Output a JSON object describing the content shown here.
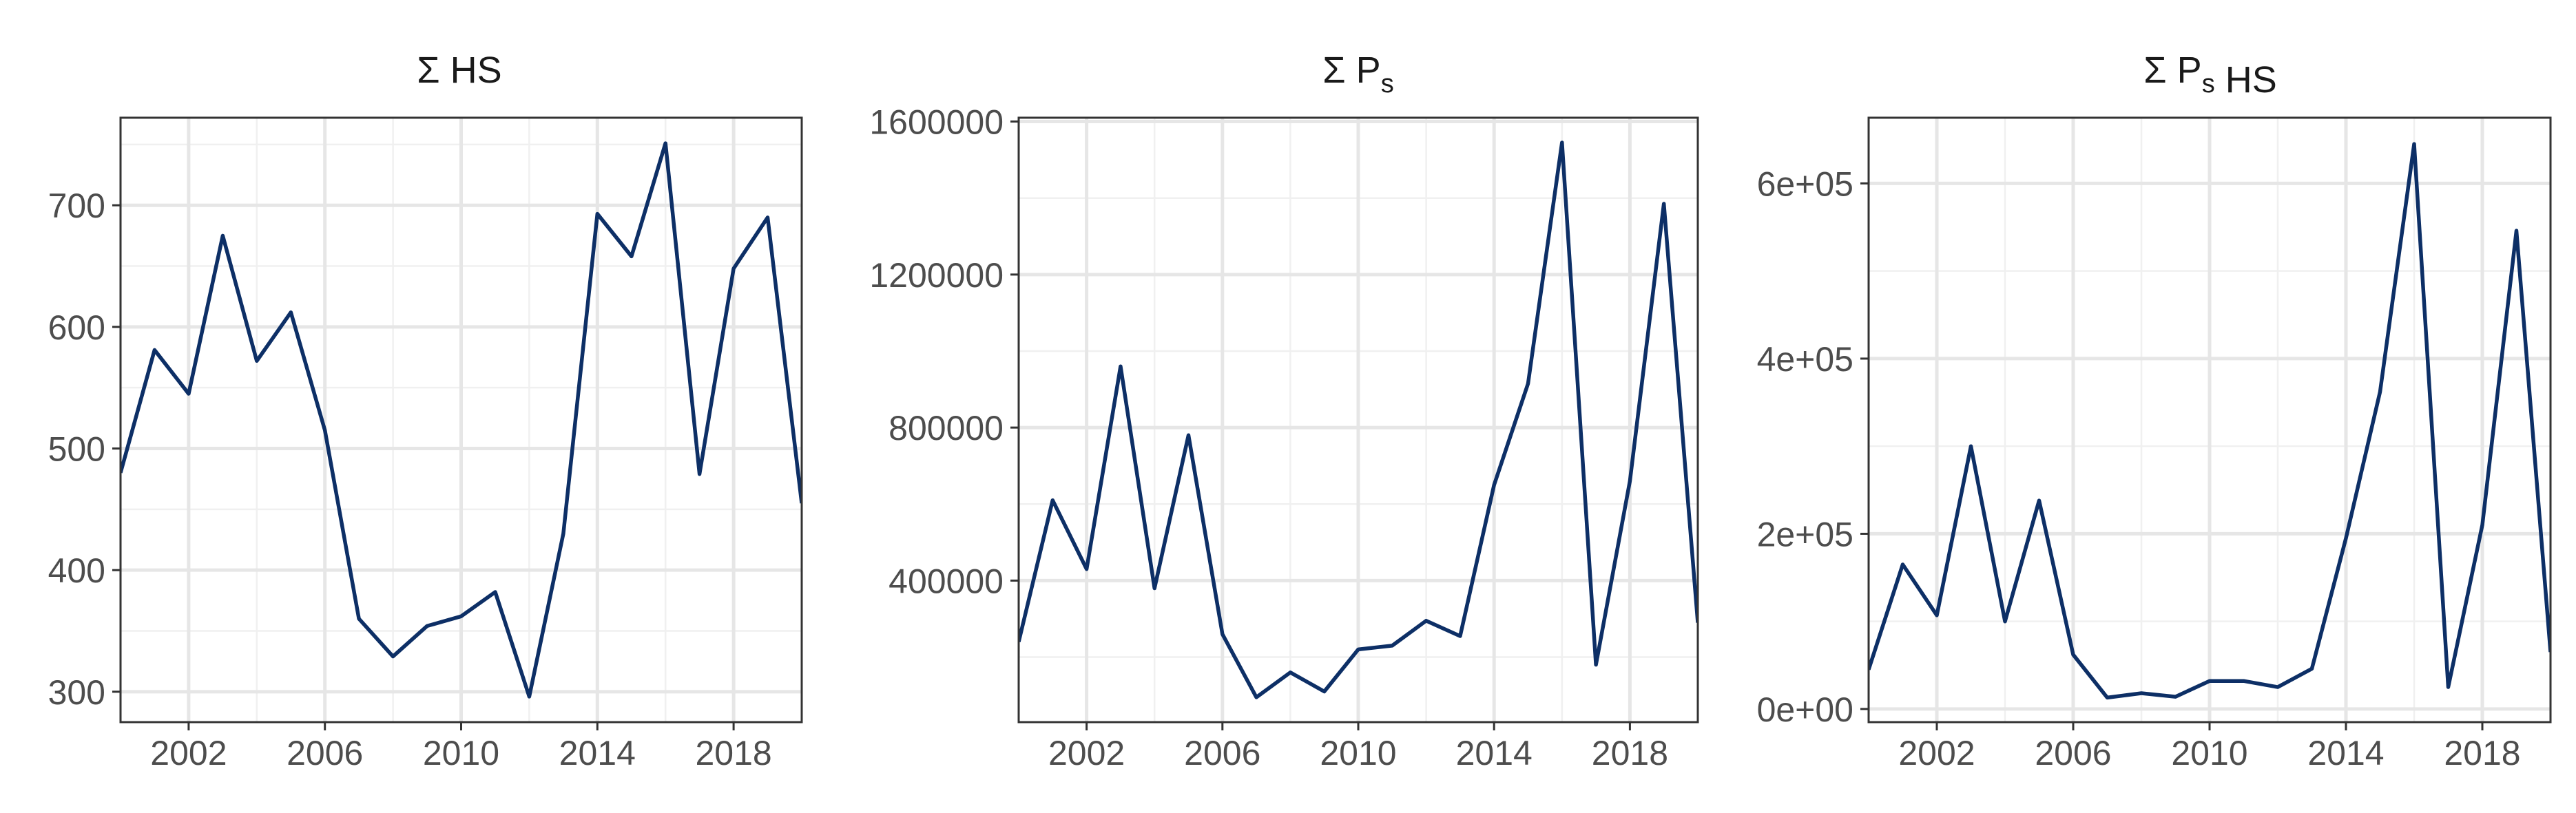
{
  "chart_data": [
    {
      "type": "line",
      "title": "Σ HS",
      "title_parts": [
        {
          "text": "Σ HS",
          "sub": ""
        }
      ],
      "x": [
        2000,
        2001,
        2002,
        2003,
        2004,
        2005,
        2006,
        2007,
        2008,
        2009,
        2010,
        2011,
        2012,
        2013,
        2014,
        2015,
        2016,
        2017,
        2018,
        2019,
        2020
      ],
      "series": [
        {
          "values": [
            480,
            581,
            545,
            675,
            572,
            612,
            515,
            360,
            329,
            354,
            362,
            382,
            296,
            430,
            693,
            658,
            751,
            479,
            648,
            690,
            455
          ]
        }
      ],
      "xlim": [
        2000,
        2020
      ],
      "ylim": [
        275,
        772
      ],
      "x_ticks": [
        2002,
        2006,
        2010,
        2014,
        2018
      ],
      "x_tick_labels": [
        "2002",
        "2006",
        "2010",
        "2014",
        "2018"
      ],
      "y_ticks": [
        300,
        400,
        500,
        600,
        700
      ],
      "y_tick_labels": [
        "300",
        "400",
        "500",
        "600",
        "700"
      ],
      "xlabel": "",
      "ylabel": "",
      "grid": true,
      "line_color": "#0d2f66"
    },
    {
      "type": "line",
      "title": "Σ Ps",
      "title_parts": [
        {
          "text": "Σ P",
          "sub": "s"
        }
      ],
      "x": [
        2000,
        2001,
        2002,
        2003,
        2004,
        2005,
        2006,
        2007,
        2008,
        2009,
        2010,
        2011,
        2012,
        2013,
        2014,
        2015,
        2016,
        2017,
        2018,
        2019,
        2020
      ],
      "series": [
        {
          "values": [
            240000,
            610000,
            430000,
            960000,
            380000,
            780000,
            260000,
            95000,
            160000,
            110000,
            220000,
            230000,
            295000,
            255000,
            650000,
            915000,
            1545000,
            180000,
            660000,
            1385000,
            290000
          ]
        }
      ],
      "xlim": [
        2000,
        2020
      ],
      "ylim": [
        30000,
        1610000
      ],
      "x_ticks": [
        2002,
        2006,
        2010,
        2014,
        2018
      ],
      "x_tick_labels": [
        "2002",
        "2006",
        "2010",
        "2014",
        "2018"
      ],
      "y_ticks": [
        400000,
        800000,
        1200000,
        1600000
      ],
      "y_tick_labels": [
        "400000",
        "800000",
        "1200000",
        "1600000"
      ],
      "xlabel": "",
      "ylabel": "",
      "grid": true,
      "line_color": "#0d2f66"
    },
    {
      "type": "line",
      "title": "Σ Ps HS",
      "title_parts": [
        {
          "text": "Σ P",
          "sub": "s"
        },
        {
          "text": " HS",
          "sub": ""
        }
      ],
      "x": [
        2000,
        2001,
        2002,
        2003,
        2004,
        2005,
        2006,
        2007,
        2008,
        2009,
        2010,
        2011,
        2012,
        2013,
        2014,
        2015,
        2016,
        2017,
        2018,
        2019,
        2020
      ],
      "series": [
        {
          "values": [
            45000,
            165000,
            107000,
            300000,
            100000,
            238000,
            62000,
            13000,
            18000,
            14000,
            32000,
            32000,
            25000,
            46000,
            195000,
            362000,
            645000,
            25000,
            210000,
            546000,
            65000
          ]
        }
      ],
      "xlim": [
        2000,
        2020
      ],
      "ylim": [
        -15000,
        675000
      ],
      "x_ticks": [
        2002,
        2006,
        2010,
        2014,
        2018
      ],
      "x_tick_labels": [
        "2002",
        "2006",
        "2010",
        "2014",
        "2018"
      ],
      "y_ticks": [
        0,
        200000,
        400000,
        600000
      ],
      "y_tick_labels": [
        "0e+00",
        "2e+05",
        "4e+05",
        "6e+05"
      ],
      "xlabel": "",
      "ylabel": "",
      "grid": true,
      "line_color": "#0d2f66"
    }
  ]
}
